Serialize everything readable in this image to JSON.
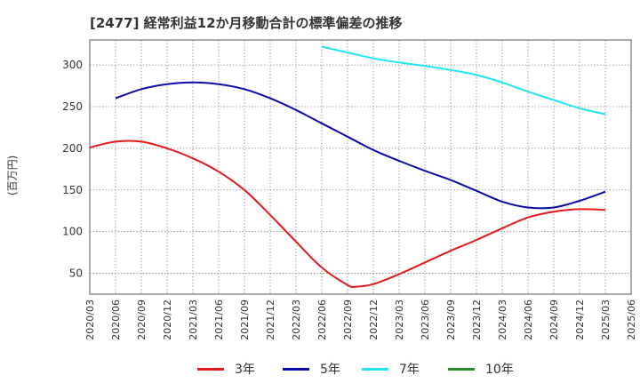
{
  "title": "[2477]  経常利益12か月移動合計の標準偏差の推移",
  "ylabel": "(百万円)",
  "chart_data": {
    "type": "line",
    "title": "[2477]  経常利益12か月移動合計の標準偏差の推移",
    "ylabel": "(百万円)",
    "xlabel": "",
    "ylim": [
      25,
      330
    ],
    "yticks": [
      50,
      100,
      150,
      200,
      250,
      300
    ],
    "xticks": [
      "2020/03",
      "2020/06",
      "2020/09",
      "2020/12",
      "2021/03",
      "2021/06",
      "2021/09",
      "2021/12",
      "2022/03",
      "2022/06",
      "2022/09",
      "2022/12",
      "2023/03",
      "2023/06",
      "2023/09",
      "2023/12",
      "2024/03",
      "2024/06",
      "2024/09",
      "2024/12",
      "2025/03",
      "2025/06"
    ],
    "grid": true,
    "legend_position": "bottom",
    "series": [
      {
        "name": "3年",
        "color": "#e31a1c",
        "x": [
          "2020/03",
          "2020/06",
          "2020/09",
          "2020/12",
          "2021/03",
          "2021/06",
          "2021/09",
          "2021/12",
          "2022/03",
          "2022/06",
          "2022/09",
          "2022/10",
          "2022/12",
          "2023/03",
          "2023/06",
          "2023/09",
          "2023/12",
          "2024/03",
          "2024/06",
          "2024/09",
          "2024/12",
          "2025/03"
        ],
        "values": [
          201,
          208,
          208,
          200,
          188,
          172,
          150,
          120,
          88,
          57,
          36,
          34,
          37,
          49,
          63,
          77,
          90,
          104,
          117,
          124,
          127,
          126
        ]
      },
      {
        "name": "5年",
        "color": "#0a0aa8",
        "x": [
          "2020/06",
          "2020/09",
          "2020/12",
          "2021/03",
          "2021/06",
          "2021/09",
          "2021/12",
          "2022/03",
          "2022/06",
          "2022/09",
          "2022/12",
          "2023/03",
          "2023/06",
          "2023/09",
          "2023/12",
          "2024/03",
          "2024/06",
          "2024/09",
          "2024/12",
          "2025/03"
        ],
        "values": [
          260,
          271,
          277,
          279,
          277,
          271,
          260,
          246,
          230,
          214,
          198,
          185,
          173,
          162,
          149,
          136,
          129,
          129,
          137,
          148
        ]
      },
      {
        "name": "7年",
        "color": "#22e5f0",
        "x": [
          "2022/06",
          "2022/09",
          "2022/12",
          "2023/03",
          "2023/06",
          "2023/09",
          "2023/12",
          "2024/03",
          "2024/06",
          "2024/09",
          "2024/12",
          "2025/03"
        ],
        "values": [
          322,
          315,
          308,
          303,
          299,
          294,
          288,
          279,
          268,
          258,
          248,
          241
        ]
      },
      {
        "name": "10年",
        "color": "#2a8a2a",
        "x": [],
        "values": []
      }
    ]
  }
}
